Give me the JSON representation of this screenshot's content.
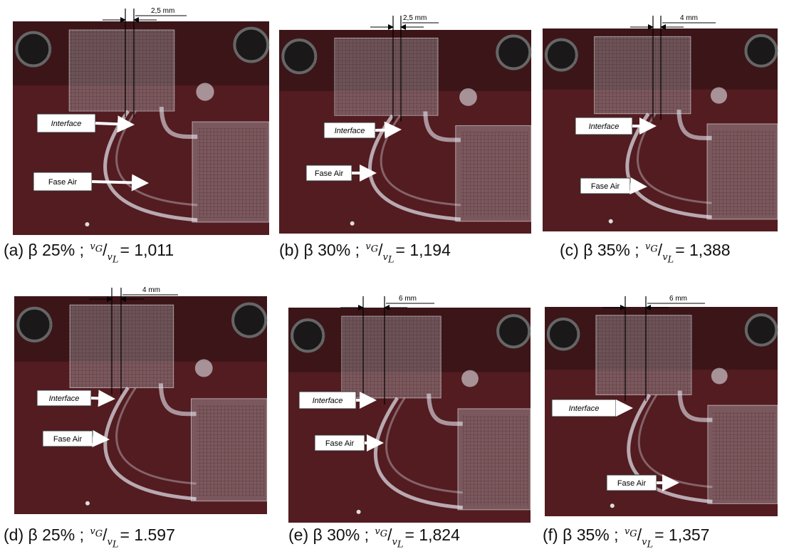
{
  "notation": {
    "separator": ";",
    "numerator": "v",
    "numerator_sub": "G",
    "slash": "/",
    "denominator": "v",
    "denominator_sub": "L",
    "equals": "="
  },
  "panels": [
    {
      "measure": "2,5 mm",
      "interface": "Interface",
      "air": "Fase Air",
      "caption": {
        "label": "(a)",
        "beta": "β 25%",
        "value": "1,011"
      }
    },
    {
      "measure": "2,5 mm",
      "interface": "Interface",
      "air": "Fase Air",
      "caption": {
        "label": "(b)",
        "beta": "β 30%",
        "value": "1,194"
      }
    },
    {
      "measure": "4 mm",
      "interface": "Interface",
      "air": "Fase Air",
      "caption": {
        "label": "(c)",
        "beta": "β 35%",
        "value": "1,388"
      }
    },
    {
      "measure": "4 mm",
      "interface": "Interface",
      "air": "Fase Air",
      "caption": {
        "label": "(d)",
        "beta": "β 25%",
        "value": "1.597"
      }
    },
    {
      "measure": "6 mm",
      "interface": "Interface",
      "air": "Fase Air",
      "caption": {
        "label": "(e)",
        "beta": "β 30%",
        "value": "1,824"
      }
    },
    {
      "measure": "6 mm",
      "interface": "Interface",
      "air": "Fase Air",
      "caption": {
        "label": "(f)",
        "beta": "β 35%",
        "value": "1,357"
      }
    }
  ]
}
